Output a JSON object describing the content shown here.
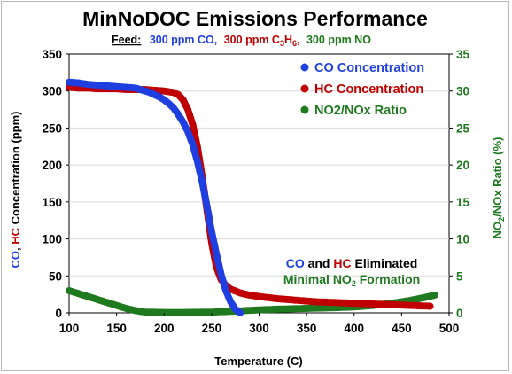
{
  "colors": {
    "co": "#1f3fe0",
    "hc": "#c00000",
    "nox": "#1f7a1f",
    "gray": "#d9d9d9"
  },
  "chart_data": {
    "type": "scatter",
    "title": "MinNoDOC Emissions Performance",
    "subtitle": {
      "feed_label": "Feed:",
      "co": "300 ppm CO,",
      "hc": [
        "300 ppm C",
        "3",
        "H",
        "6",
        ","
      ],
      "no": "300 ppm NO"
    },
    "xlabel": "Temperature (C)",
    "ylabel": {
      "co": "CO",
      "sep": ",",
      "hc": "HC",
      "rest": " Concentration (ppm)"
    },
    "y2label": {
      "pre": "NO",
      "sub": "2",
      "post": "/NOx Ratio (%)"
    },
    "xlim": [
      100,
      500
    ],
    "ylim": [
      0,
      350
    ],
    "y2lim": [
      0,
      35
    ],
    "xticks": [
      "100",
      "150",
      "200",
      "250",
      "300",
      "350",
      "400",
      "450",
      "500"
    ],
    "yticks": [
      "0",
      "50",
      "100",
      "150",
      "200",
      "250",
      "300",
      "350"
    ],
    "y2ticks": [
      "0",
      "5",
      "10",
      "15",
      "20",
      "25",
      "30",
      "35"
    ],
    "legend_position": "top-right",
    "grid": "horizontal",
    "series": [
      {
        "name": "CO Concentration",
        "axis": "left",
        "points": [
          [
            100,
            312
          ],
          [
            110,
            311
          ],
          [
            120,
            309
          ],
          [
            130,
            308
          ],
          [
            140,
            307
          ],
          [
            150,
            306
          ],
          [
            160,
            305
          ],
          [
            170,
            304
          ],
          [
            175,
            302
          ],
          [
            180,
            300
          ],
          [
            185,
            298
          ],
          [
            190,
            295
          ],
          [
            195,
            292
          ],
          [
            200,
            288
          ],
          [
            205,
            283
          ],
          [
            210,
            277
          ],
          [
            215,
            268
          ],
          [
            220,
            258
          ],
          [
            225,
            245
          ],
          [
            230,
            228
          ],
          [
            235,
            205
          ],
          [
            240,
            178
          ],
          [
            245,
            145
          ],
          [
            250,
            110
          ],
          [
            255,
            80
          ],
          [
            260,
            52
          ],
          [
            265,
            30
          ],
          [
            270,
            15
          ],
          [
            275,
            5
          ],
          [
            280,
            0
          ]
        ]
      },
      {
        "name": "HC Concentration",
        "axis": "left",
        "points": [
          [
            100,
            305
          ],
          [
            110,
            304
          ],
          [
            120,
            304
          ],
          [
            130,
            303
          ],
          [
            140,
            303
          ],
          [
            150,
            303
          ],
          [
            160,
            302
          ],
          [
            170,
            302
          ],
          [
            180,
            302
          ],
          [
            190,
            301
          ],
          [
            200,
            300
          ],
          [
            210,
            298
          ],
          [
            215,
            295
          ],
          [
            220,
            288
          ],
          [
            225,
            275
          ],
          [
            230,
            255
          ],
          [
            235,
            225
          ],
          [
            240,
            185
          ],
          [
            245,
            140
          ],
          [
            250,
            95
          ],
          [
            255,
            62
          ],
          [
            260,
            45
          ],
          [
            265,
            37
          ],
          [
            270,
            32
          ],
          [
            280,
            27
          ],
          [
            290,
            24
          ],
          [
            300,
            22
          ],
          [
            320,
            19
          ],
          [
            340,
            17
          ],
          [
            360,
            15
          ],
          [
            380,
            14
          ],
          [
            400,
            13
          ],
          [
            420,
            12
          ],
          [
            440,
            11
          ],
          [
            460,
            10
          ],
          [
            480,
            9
          ]
        ]
      },
      {
        "name": "NO2/NOx Ratio",
        "axis": "right",
        "points": [
          [
            100,
            3.0
          ],
          [
            110,
            2.6
          ],
          [
            120,
            2.2
          ],
          [
            130,
            1.8
          ],
          [
            140,
            1.4
          ],
          [
            150,
            1.0
          ],
          [
            160,
            0.6
          ],
          [
            170,
            0.3
          ],
          [
            180,
            0.1
          ],
          [
            200,
            0.05
          ],
          [
            220,
            0.05
          ],
          [
            250,
            0.1
          ],
          [
            270,
            0.2
          ],
          [
            300,
            0.4
          ],
          [
            320,
            0.5
          ],
          [
            350,
            0.6
          ],
          [
            380,
            0.7
          ],
          [
            400,
            0.8
          ],
          [
            420,
            1.0
          ],
          [
            440,
            1.3
          ],
          [
            460,
            1.7
          ],
          [
            475,
            2.1
          ],
          [
            485,
            2.4
          ]
        ]
      }
    ],
    "annotation": {
      "line1": {
        "co": "CO",
        "and": " and ",
        "hc": "HC",
        "rest": " Eliminated"
      },
      "line2": {
        "pre": "Minimal NO",
        "sub": "2",
        "post": " Formation"
      }
    }
  }
}
